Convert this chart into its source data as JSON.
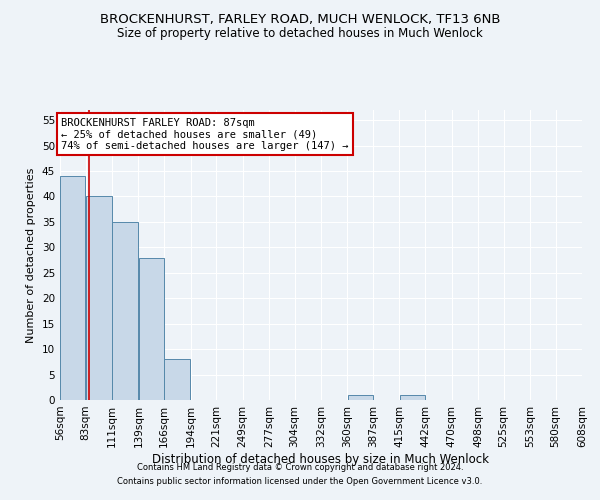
{
  "title": "BROCKENHURST, FARLEY ROAD, MUCH WENLOCK, TF13 6NB",
  "subtitle": "Size of property relative to detached houses in Much Wenlock",
  "xlabel": "Distribution of detached houses by size in Much Wenlock",
  "ylabel": "Number of detached properties",
  "footer_line1": "Contains HM Land Registry data © Crown copyright and database right 2024.",
  "footer_line2": "Contains public sector information licensed under the Open Government Licence v3.0.",
  "bin_edges": [
    56,
    83,
    111,
    139,
    166,
    194,
    221,
    249,
    277,
    304,
    332,
    360,
    387,
    415,
    442,
    470,
    498,
    525,
    553,
    580,
    608
  ],
  "bar_heights": [
    44,
    40,
    35,
    28,
    8,
    0,
    0,
    0,
    0,
    0,
    0,
    1,
    0,
    1,
    0,
    0,
    0,
    0,
    0,
    0
  ],
  "bar_color": "#c8d8e8",
  "bar_edgecolor": "#5588aa",
  "property_size": 87,
  "vline_color": "#cc0000",
  "annotation_title": "BROCKENHURST FARLEY ROAD: 87sqm",
  "annotation_line1": "← 25% of detached houses are smaller (49)",
  "annotation_line2": "74% of semi-detached houses are larger (147) →",
  "annotation_box_color": "#ffffff",
  "annotation_box_edgecolor": "#cc0000",
  "ylim": [
    0,
    57
  ],
  "yticks": [
    0,
    5,
    10,
    15,
    20,
    25,
    30,
    35,
    40,
    45,
    50,
    55
  ],
  "background_color": "#eef3f8",
  "plot_background_color": "#eef3f8",
  "grid_color": "#ffffff",
  "tick_label_fontsize": 7.5,
  "title_fontsize": 9.5,
  "subtitle_fontsize": 8.5,
  "ylabel_fontsize": 8,
  "xlabel_fontsize": 8.5,
  "footer_fontsize": 6.0,
  "annotation_fontsize": 7.5
}
